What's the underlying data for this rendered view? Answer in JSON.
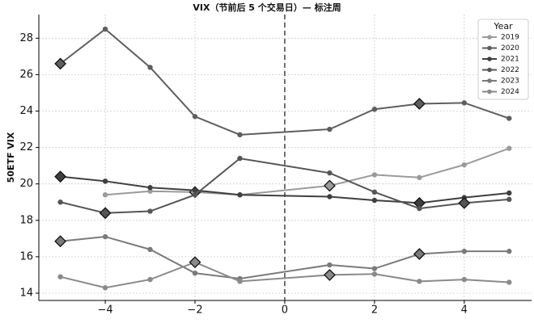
{
  "chart_data": {
    "type": "line",
    "title": "VIX（节前后 5 个交易日）— 标注周",
    "y_label": "50ETF VIX",
    "x": [
      -5,
      -4,
      -3,
      -2,
      -1,
      1,
      2,
      3,
      4,
      5
    ],
    "series": [
      {
        "name": "2019",
        "color": "#9a9a9a",
        "values": [
          null,
          19.4,
          19.6,
          19.55,
          19.4,
          19.9,
          20.5,
          20.35,
          21.05,
          21.95
        ],
        "highlight_x": [
          -2,
          1
        ]
      },
      {
        "name": "2020",
        "color": "#5e5e5e",
        "values": [
          26.6,
          28.5,
          26.4,
          23.7,
          22.7,
          23.0,
          24.1,
          24.4,
          24.45,
          23.6
        ],
        "highlight_x": [
          -5,
          3
        ]
      },
      {
        "name": "2021",
        "color": "#3f3f3f",
        "values": [
          20.4,
          20.15,
          19.8,
          19.65,
          19.4,
          19.3,
          19.1,
          18.95,
          19.25,
          19.5
        ],
        "highlight_x": [
          -5,
          3
        ]
      },
      {
        "name": "2022",
        "color": "#555555",
        "values": [
          19.0,
          18.4,
          18.5,
          19.4,
          21.4,
          20.6,
          19.55,
          18.65,
          18.95,
          19.15
        ],
        "highlight_x": [
          -4,
          4
        ]
      },
      {
        "name": "2023",
        "color": "#7a7a7a",
        "values": [
          16.85,
          17.1,
          16.4,
          15.1,
          14.8,
          15.55,
          15.35,
          16.15,
          16.3,
          16.3
        ],
        "highlight_x": [
          -5,
          3
        ]
      },
      {
        "name": "2024",
        "color": "#8a8a8a",
        "values": [
          14.9,
          14.3,
          14.75,
          15.7,
          14.65,
          15.0,
          15.05,
          14.65,
          14.75,
          14.6
        ],
        "highlight_x": [
          -2,
          1
        ]
      }
    ],
    "xlim": [
      -5.48,
      5.5
    ],
    "ylim": [
      13.6,
      29.3
    ],
    "xticks": [
      {
        "value": -4,
        "label": "−4"
      },
      {
        "value": -2,
        "label": "−2"
      },
      0,
      2,
      4
    ],
    "yticks": [
      14,
      16,
      18,
      20,
      22,
      24,
      26,
      28
    ],
    "vline": 0,
    "grid": true,
    "legend_title": "Year",
    "legend": "upper right"
  }
}
